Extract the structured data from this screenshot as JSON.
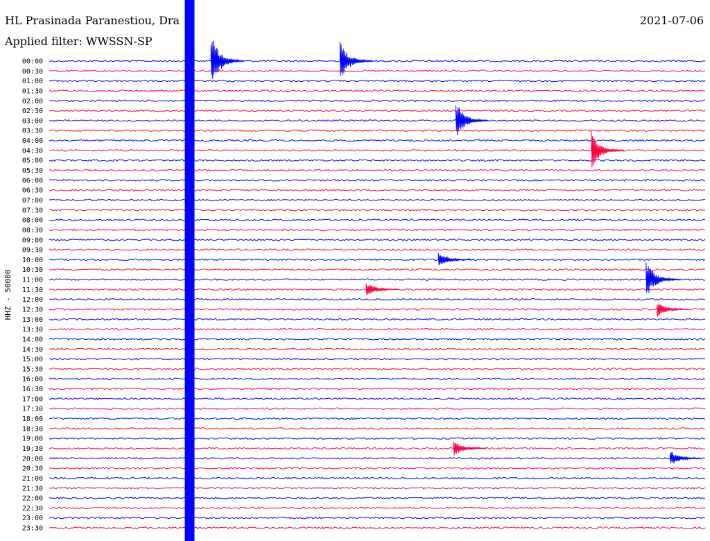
{
  "header": {
    "station": "HL Prasinada Paranestiou, Dra",
    "date": "2021-07-06",
    "filter": "Applied filter: WWSSN-SP"
  },
  "chart_data": {
    "type": "line",
    "title": "",
    "ylabel": "HHZ - 50000",
    "xlabel": "",
    "row_times": [
      "00:00",
      "00:30",
      "01:00",
      "01:30",
      "02:00",
      "02:30",
      "03:00",
      "03:30",
      "04:00",
      "04:30",
      "05:00",
      "05:30",
      "06:00",
      "06:30",
      "07:00",
      "07:30",
      "08:00",
      "08:30",
      "09:00",
      "09:30",
      "10:00",
      "10:30",
      "11:00",
      "11:30",
      "12:00",
      "12:30",
      "13:00",
      "13:30",
      "14:00",
      "14:30",
      "15:00",
      "15:30",
      "16:00",
      "16:30",
      "17:00",
      "17:30",
      "18:00",
      "18:30",
      "19:00",
      "19:30",
      "20:00",
      "20:30",
      "21:00",
      "21:30",
      "22:00",
      "22:30",
      "23:00",
      "23:30"
    ],
    "colors": {
      "even": "#0000ff",
      "odd": "#ff0040"
    },
    "grid": false,
    "events": [
      {
        "row": 0,
        "minute": 7.4,
        "strength": "large"
      },
      {
        "row": 0,
        "minute": 13.3,
        "strength": "medium"
      },
      {
        "row": 6,
        "minute": 18.6,
        "strength": "medium"
      },
      {
        "row": 9,
        "minute": 24.8,
        "strength": "medium"
      },
      {
        "row": 20,
        "minute": 17.8,
        "strength": "small"
      },
      {
        "row": 22,
        "minute": 27.3,
        "strength": "medium"
      },
      {
        "row": 23,
        "minute": 14.5,
        "strength": "small"
      },
      {
        "row": 25,
        "minute": 27.8,
        "strength": "small"
      },
      {
        "row": 39,
        "minute": 18.5,
        "strength": "small"
      },
      {
        "row": 40,
        "minute": 28.4,
        "strength": "small"
      }
    ]
  }
}
